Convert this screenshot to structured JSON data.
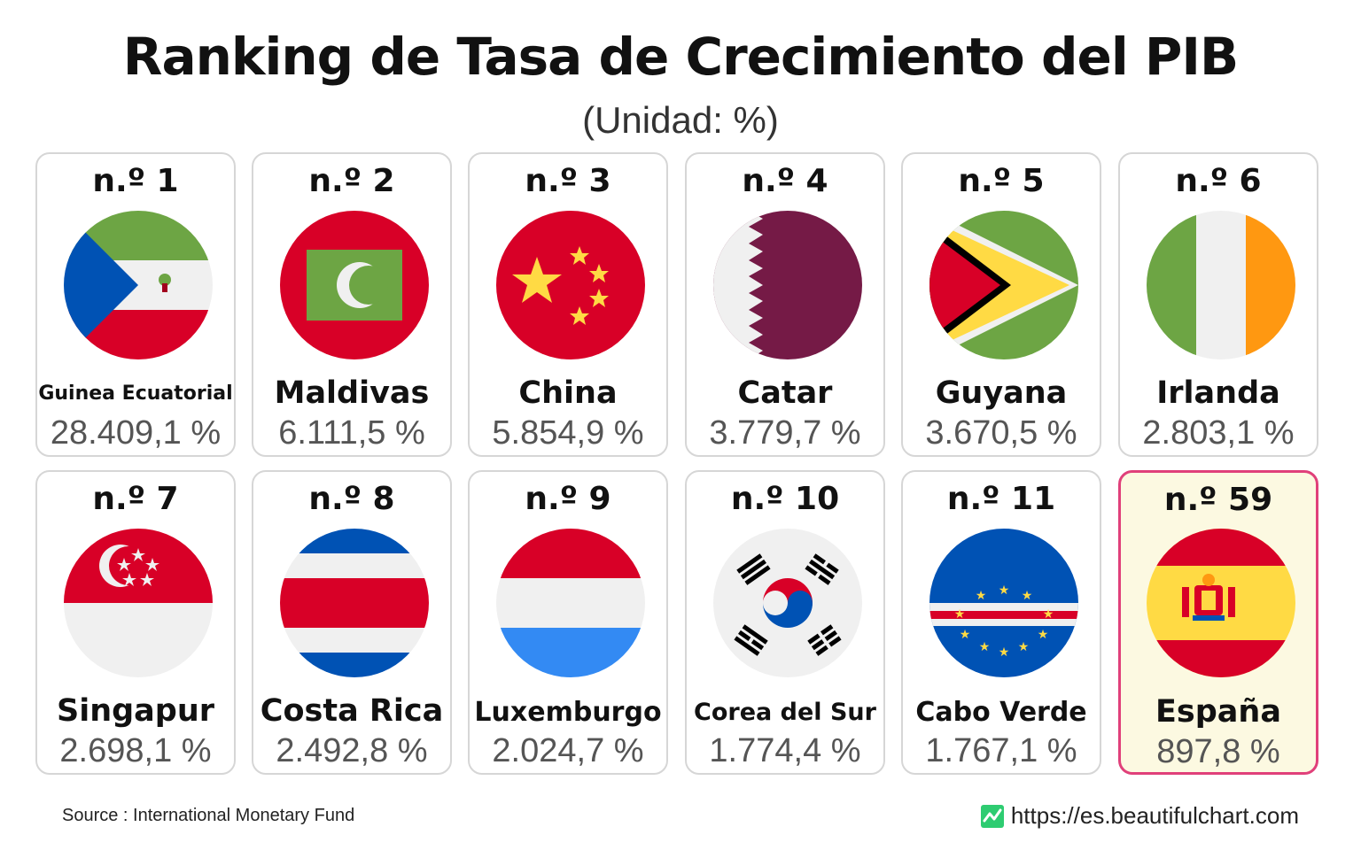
{
  "title": "Ranking de Tasa de Crecimiento del PIB",
  "subtitle": "(Unidad: %)",
  "source": "Source : International Monetary Fund",
  "website": "https://es.beautifulchart.com",
  "colors": {
    "highlight_border": "#e0407a",
    "highlight_bg": "#fcf9e1",
    "card_border": "#d6d6d6"
  },
  "chart_data": {
    "type": "table",
    "title": "Ranking de Tasa de Crecimiento del PIB",
    "unit": "(Unidad: %)",
    "columns": [
      "rank",
      "country",
      "value"
    ],
    "rows": [
      {
        "rank": "n.º 1",
        "country": "Guinea Ecuatorial",
        "value": 28409.1,
        "value_label": "28.409,1 %",
        "flag": "equatorial-guinea-flag"
      },
      {
        "rank": "n.º 2",
        "country": "Maldivas",
        "value": 6111.5,
        "value_label": "6.111,5 %",
        "flag": "maldives-flag"
      },
      {
        "rank": "n.º 3",
        "country": "China",
        "value": 5854.9,
        "value_label": "5.854,9 %",
        "flag": "china-flag"
      },
      {
        "rank": "n.º 4",
        "country": "Catar",
        "value": 3779.7,
        "value_label": "3.779,7 %",
        "flag": "qatar-flag"
      },
      {
        "rank": "n.º 5",
        "country": "Guyana",
        "value": 3670.5,
        "value_label": "3.670,5 %",
        "flag": "guyana-flag"
      },
      {
        "rank": "n.º 6",
        "country": "Irlanda",
        "value": 2803.1,
        "value_label": "2.803,1 %",
        "flag": "ireland-flag"
      },
      {
        "rank": "n.º 7",
        "country": "Singapur",
        "value": 2698.1,
        "value_label": "2.698,1 %",
        "flag": "singapore-flag"
      },
      {
        "rank": "n.º 8",
        "country": "Costa Rica",
        "value": 2492.8,
        "value_label": "2.492,8 %",
        "flag": "costa-rica-flag"
      },
      {
        "rank": "n.º 9",
        "country": "Luxemburgo",
        "value": 2024.7,
        "value_label": "2.024,7 %",
        "flag": "luxembourg-flag"
      },
      {
        "rank": "n.º 10",
        "country": "Corea del Sur",
        "value": 1774.4,
        "value_label": "1.774,4 %",
        "flag": "south-korea-flag"
      },
      {
        "rank": "n.º 11",
        "country": "Cabo Verde",
        "value": 1767.1,
        "value_label": "1.767,1 %",
        "flag": "cape-verde-flag"
      },
      {
        "rank": "n.º 59",
        "country": "España",
        "value": 897.8,
        "value_label": "897,8 %",
        "flag": "spain-flag",
        "highlighted": true
      }
    ]
  }
}
